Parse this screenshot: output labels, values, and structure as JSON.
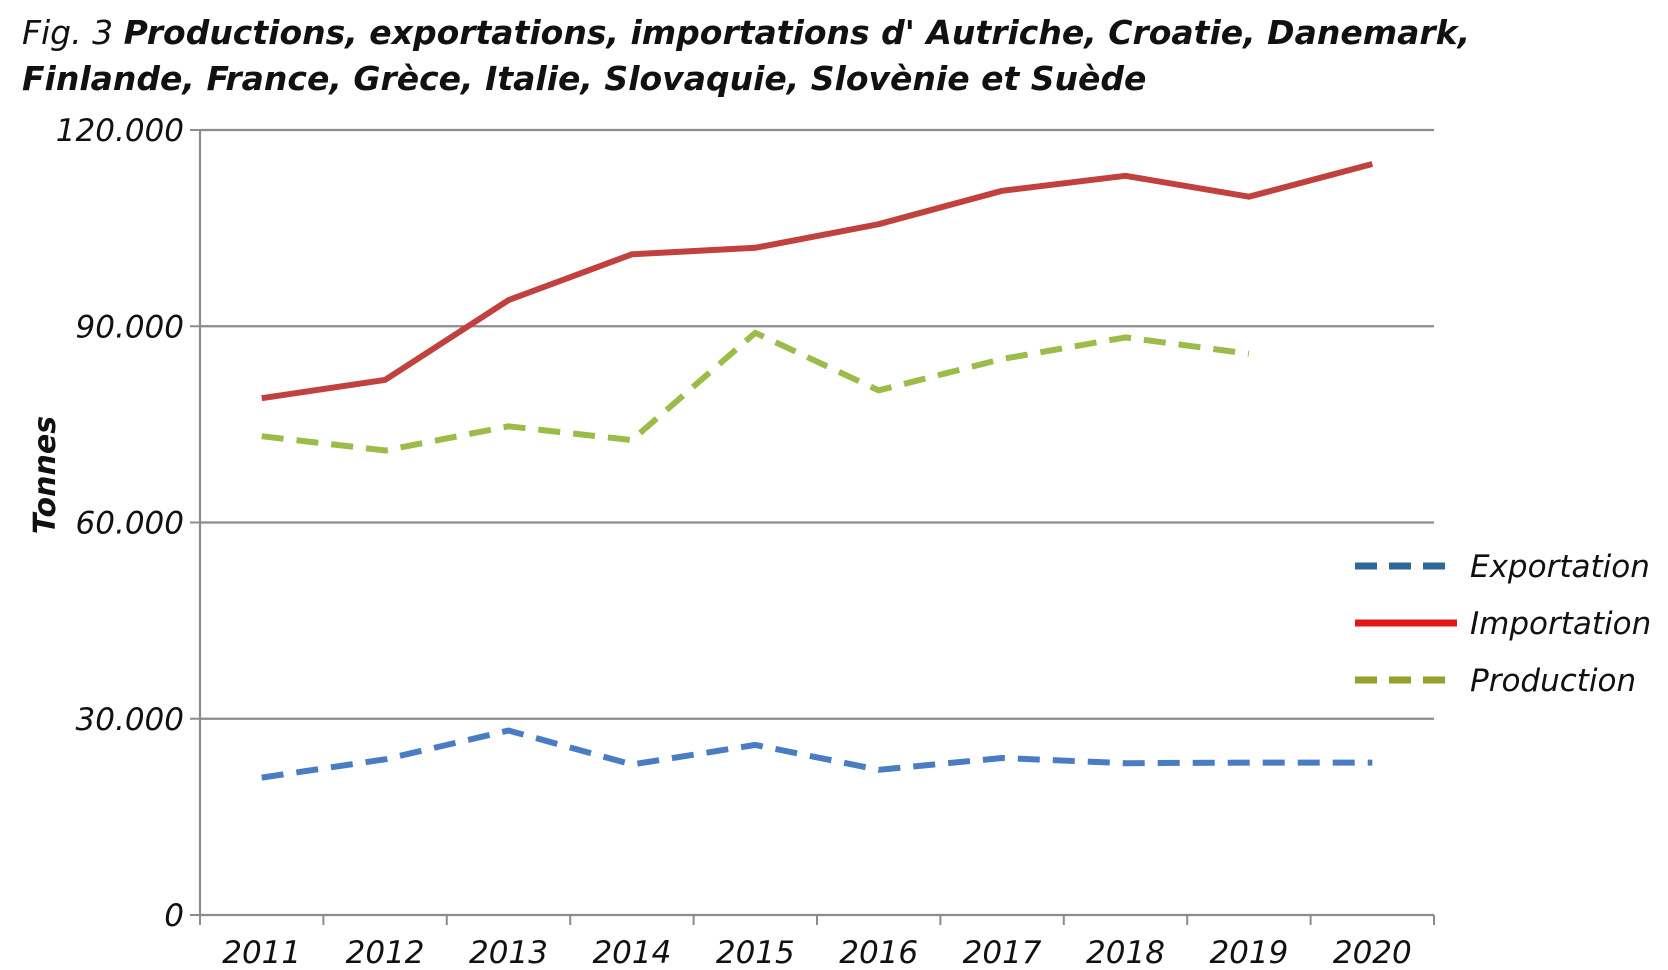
{
  "caption": {
    "fig_label": "Fig. 3",
    "title": "Productions, exportations,  importations d' Autriche, Croatie, Danemark, Finlande, France, Grèce, Italie, Slovaquie, Slovènie et Suède"
  },
  "chart_data": {
    "type": "line",
    "title": "Productions, exportations,  importations d' Autriche, Croatie, Danemark, Finlande, France, Grèce, Italie, Slovaquie, Slovènie et Suède",
    "xlabel": "",
    "ylabel": "Tonnes",
    "categories": [
      "2011",
      "2012",
      "2013",
      "2014",
      "2015",
      "2016",
      "2017",
      "2018",
      "2019",
      "2020"
    ],
    "ylim": [
      0,
      120000
    ],
    "yticks": [
      0,
      30000,
      60000,
      90000,
      120000
    ],
    "ytick_labels": [
      "0",
      "30.000",
      "60.000",
      "90.000",
      "120.000"
    ],
    "grid": true,
    "legend_position": "right",
    "series": [
      {
        "name": "Exportation",
        "color": "#4a7cc4",
        "legend_color": "#2e6a98",
        "dash": true,
        "values": [
          21000,
          23800,
          28200,
          23000,
          26000,
          22200,
          24000,
          23200,
          23300,
          23300
        ]
      },
      {
        "name": "Importation",
        "color": "#c0413d",
        "legend_color": "#e01818",
        "dash": false,
        "values": [
          79000,
          81800,
          94000,
          101000,
          102000,
          105600,
          110700,
          113000,
          109800,
          114800
        ]
      },
      {
        "name": "Production",
        "color": "#9bbc48",
        "legend_color": "#93a02c",
        "dash": true,
        "values": [
          73200,
          71000,
          74700,
          72600,
          89000,
          80200,
          85000,
          88300,
          85800,
          null
        ]
      }
    ]
  }
}
